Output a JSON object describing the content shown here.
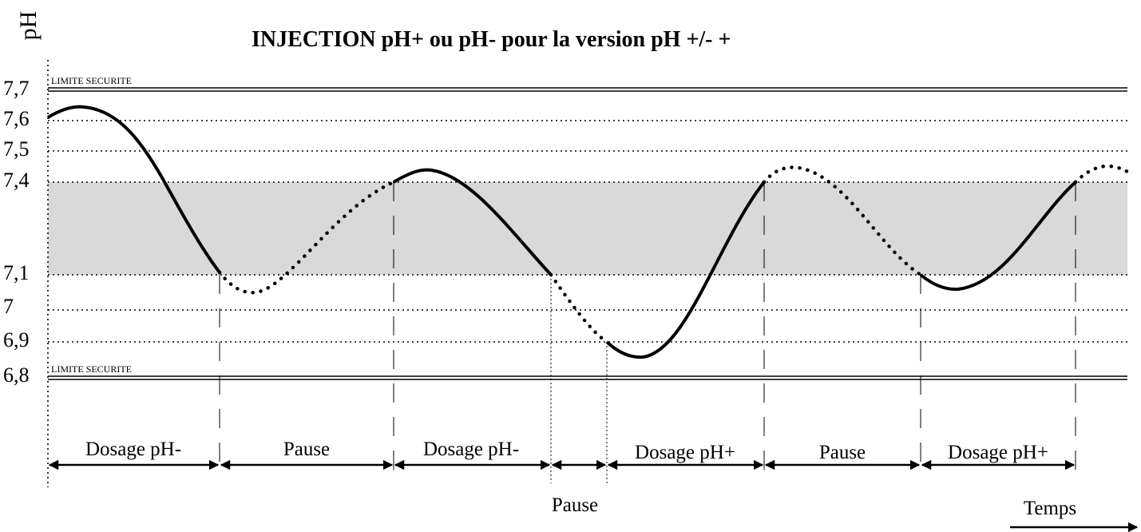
{
  "axis_label": "pH",
  "title": "INJECTION pH+ ou pH- pour la version pH +/-  +",
  "ticks": [
    "7,7",
    "7,6",
    "7,5",
    "7,4",
    "7,1",
    "7",
    "6,9",
    "6,8"
  ],
  "limits": [
    "LIMITE SECURITE",
    "LIMITE SECURITE"
  ],
  "phases": [
    "Dosage pH-",
    "Pause",
    "Dosage pH-",
    "Pause",
    "Dosage pH+",
    "Pause",
    "Dosage pH+"
  ],
  "time_label": "Temps"
}
